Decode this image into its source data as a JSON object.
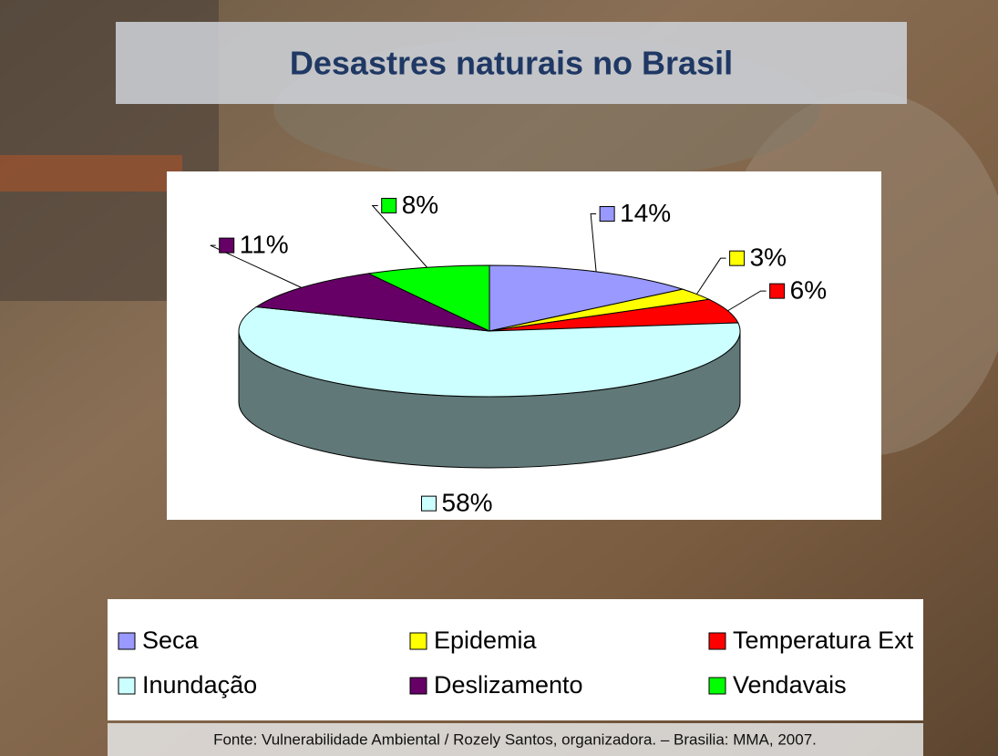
{
  "chart_data": {
    "type": "pie",
    "title": "Desastres naturais no Brasil",
    "categories": [
      "Seca",
      "Epidemia",
      "Temperatura Ext",
      "Inundação",
      "Deslizamento",
      "Vendavais"
    ],
    "values": [
      14,
      3,
      6,
      58,
      11,
      8
    ],
    "value_labels": [
      "14%",
      "3%",
      "6%",
      "58%",
      "11%",
      "8%"
    ],
    "colors": [
      "#9999ff",
      "#ffff00",
      "#ff0000",
      "#ccffff",
      "#660066",
      "#00ff00"
    ],
    "three_d": true,
    "legend": "bottom",
    "source": "Fonte: Vulnerabilidade Ambiental / Rozely Santos, organizadora. – Brasilia: MMA, 2007."
  }
}
